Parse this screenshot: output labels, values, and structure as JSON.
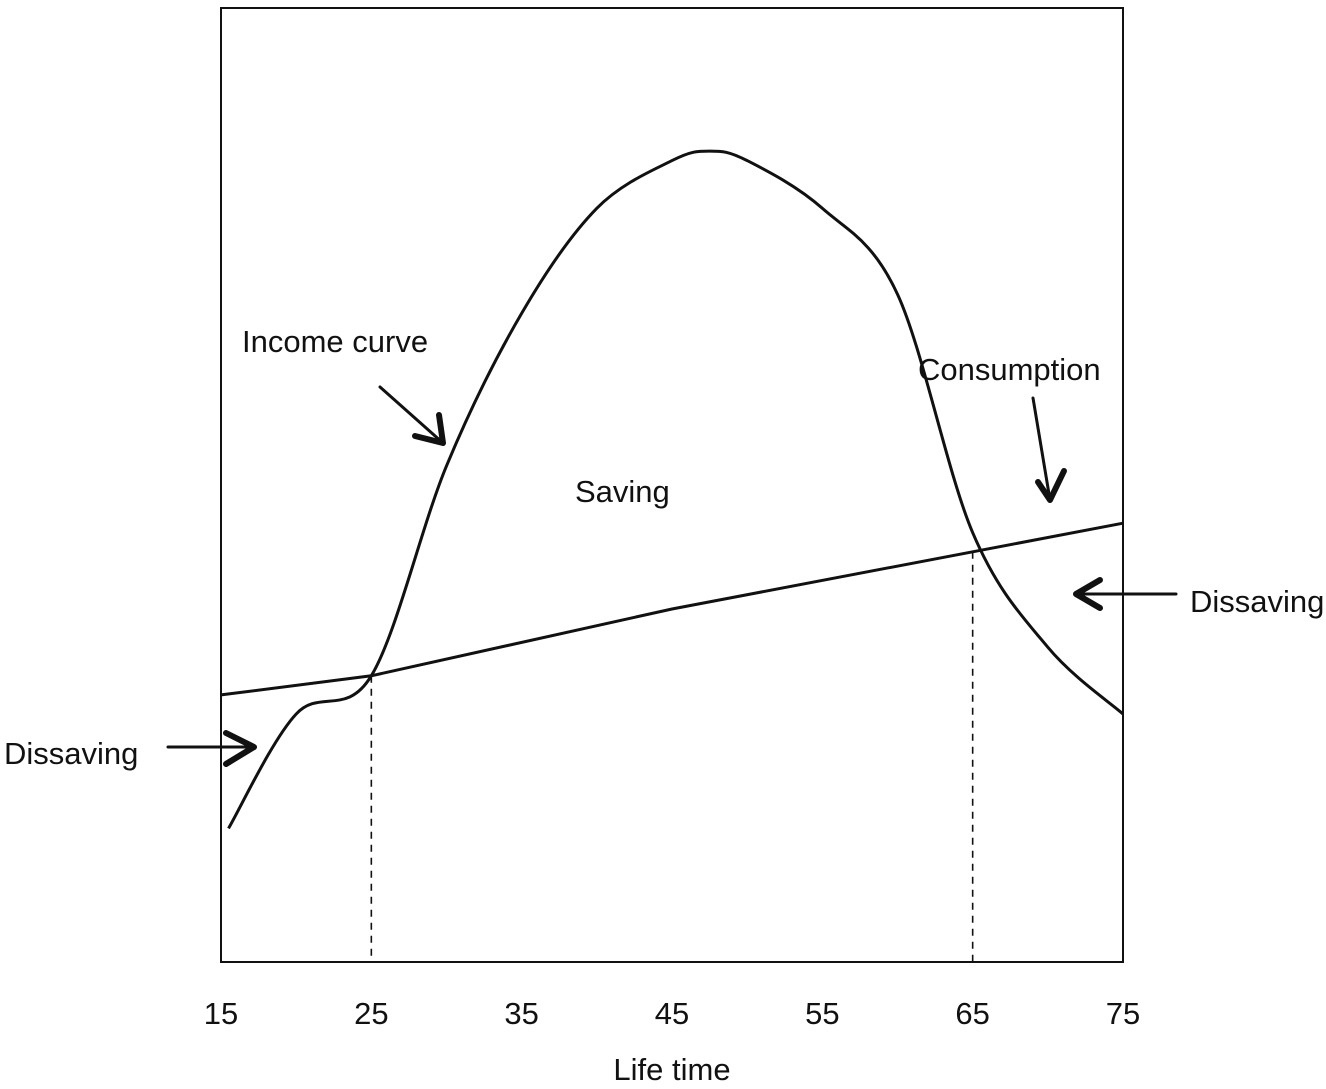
{
  "chart_data": {
    "type": "line",
    "title": "",
    "xlabel": "Life time",
    "ylabel": "",
    "xlim": [
      15,
      75
    ],
    "ylim": [
      0,
      100
    ],
    "x_ticks": [
      15,
      25,
      35,
      45,
      55,
      65,
      75
    ],
    "grid": false,
    "legend": "none",
    "series": [
      {
        "key": "income",
        "x": [
          15.5,
          20,
          25,
          30,
          35,
          40,
          45,
          47.5,
          50,
          55,
          60,
          65,
          70,
          75
        ],
        "y": [
          14,
          26,
          30,
          52,
          68,
          79,
          84,
          85,
          84,
          79,
          70,
          45,
          33,
          26
        ]
      },
      {
        "key": "consumption",
        "x": [
          15,
          25,
          45,
          65,
          75
        ],
        "y": [
          28,
          30,
          37,
          43,
          46
        ]
      }
    ],
    "intersections_x": [
      25,
      65
    ],
    "annotations": {
      "income_curve": "Income curve",
      "consumption": "Consumption",
      "saving": "Saving",
      "dissaving_left": "Dissaving",
      "dissaving_right": "Dissaving"
    },
    "line_color": "#111111"
  }
}
